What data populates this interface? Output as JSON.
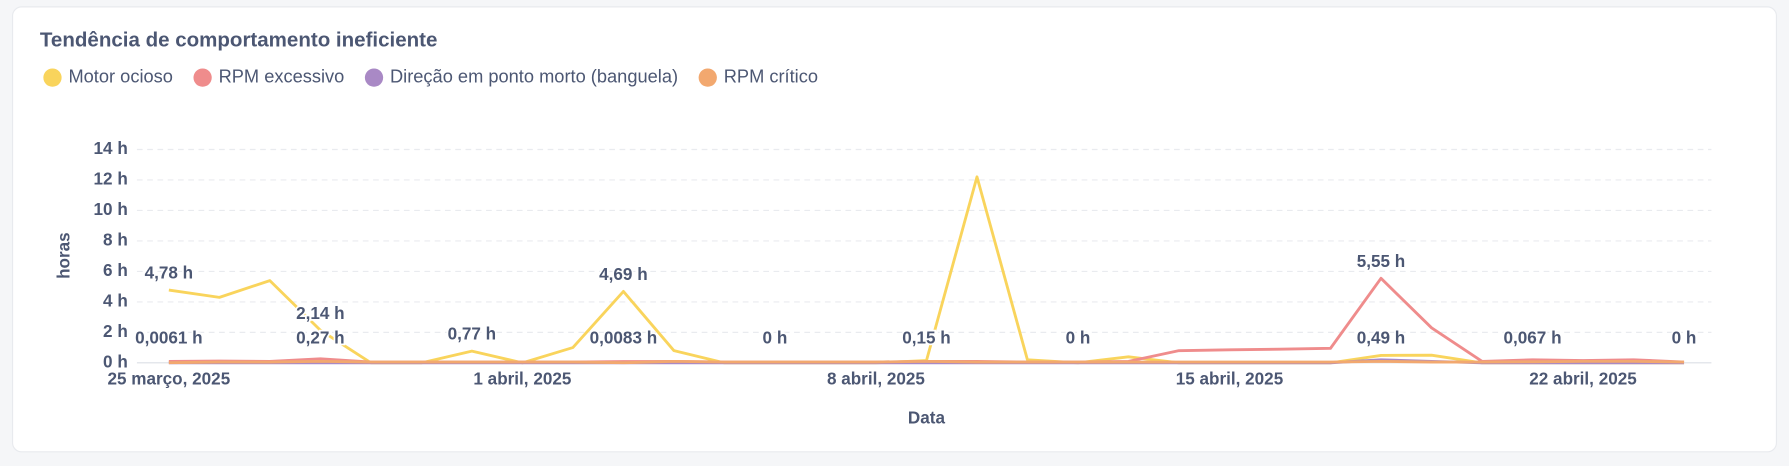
{
  "chart_data": {
    "type": "line",
    "title": "Tendência de comportamento ineficiente",
    "y_label": "horas",
    "x_label": "Data",
    "grid": true,
    "categories": [
      "25 março, 2025",
      null,
      null,
      null,
      null,
      null,
      null,
      "1 abril, 2025",
      null,
      null,
      null,
      null,
      null,
      null,
      "8 abril, 2025",
      null,
      null,
      null,
      null,
      null,
      null,
      "15 abril, 2025",
      null,
      null,
      null,
      null,
      null,
      null,
      "22 abril, 2025",
      null,
      null
    ],
    "ylim": [
      0,
      14
    ],
    "yticks": [
      {
        "value": 0,
        "label": "0 h"
      },
      {
        "value": 2,
        "label": "2 h"
      },
      {
        "value": 4,
        "label": "4 h"
      },
      {
        "value": 6,
        "label": "6 h"
      },
      {
        "value": 8,
        "label": "8 h"
      },
      {
        "value": 10,
        "label": "10 h"
      },
      {
        "value": 12,
        "label": "12 h"
      },
      {
        "value": 14,
        "label": "14 h"
      }
    ],
    "series": [
      {
        "name": "Motor ocioso",
        "color": "#f9d45c",
        "values": [
          4.78,
          4.3,
          5.4,
          2.14,
          0,
          0,
          0.77,
          0,
          1.0,
          4.69,
          0.8,
          0,
          0,
          0,
          0,
          0.15,
          12.2,
          0.2,
          0,
          0.4,
          0,
          0,
          0,
          0,
          0.49,
          0.5,
          0,
          0,
          0,
          0,
          0
        ],
        "value_labels": [
          "4,78 h",
          null,
          null,
          "2,14 h",
          null,
          null,
          "0,77 h",
          null,
          null,
          "4,69 h",
          null,
          null,
          "0 h",
          null,
          null,
          "0,15 h",
          null,
          null,
          "0 h",
          null,
          null,
          null,
          null,
          null,
          "0,49 h",
          null,
          null,
          null,
          null,
          null,
          "0 h"
        ]
      },
      {
        "name": "RPM excessivo",
        "color": "#ef8c8c",
        "values": [
          0.1,
          0.12,
          0.1,
          0.27,
          0.05,
          0.05,
          0.05,
          0.05,
          0.05,
          0.08,
          0.1,
          0.05,
          0.05,
          0.05,
          0.05,
          0.1,
          0.1,
          0.05,
          0.05,
          0.1,
          0.8,
          0.85,
          0.9,
          0.95,
          5.55,
          2.3,
          0.1,
          0.2,
          0.15,
          0.2,
          0.05
        ],
        "value_labels": [
          null,
          null,
          null,
          "0,27 h",
          null,
          null,
          null,
          null,
          null,
          null,
          null,
          null,
          null,
          null,
          null,
          null,
          null,
          null,
          null,
          null,
          null,
          null,
          null,
          null,
          "5,55 h",
          null,
          null,
          null,
          null,
          null,
          null
        ]
      },
      {
        "name": "Direção em ponto morto (banguela)",
        "color": "#a989c5",
        "values": [
          0,
          0,
          0,
          0,
          0,
          0,
          0,
          0,
          0,
          0,
          0,
          0,
          0,
          0,
          0,
          0,
          0,
          0,
          0,
          0,
          0,
          0,
          0,
          0,
          0.2,
          0.1,
          0,
          0,
          0,
          0,
          0
        ]
      },
      {
        "name": "RPM crítico",
        "color": "#f2a86f",
        "values": [
          0.0061,
          0.05,
          0.05,
          0.1,
          0.05,
          0.05,
          0.05,
          0.05,
          0.05,
          0.0083,
          0.1,
          0.05,
          0.05,
          0.05,
          0.05,
          0.1,
          0.05,
          0.05,
          0.05,
          0.05,
          0.05,
          0.05,
          0.05,
          0.05,
          0.1,
          0.05,
          0.05,
          0.067,
          0.1,
          0.1,
          0.05
        ],
        "value_labels": [
          "0,0061 h",
          null,
          null,
          null,
          null,
          null,
          null,
          null,
          null,
          "0,0083 h",
          null,
          null,
          null,
          null,
          null,
          null,
          null,
          null,
          null,
          null,
          null,
          null,
          null,
          null,
          null,
          null,
          null,
          "0,067 h",
          null,
          null,
          null
        ]
      }
    ]
  }
}
